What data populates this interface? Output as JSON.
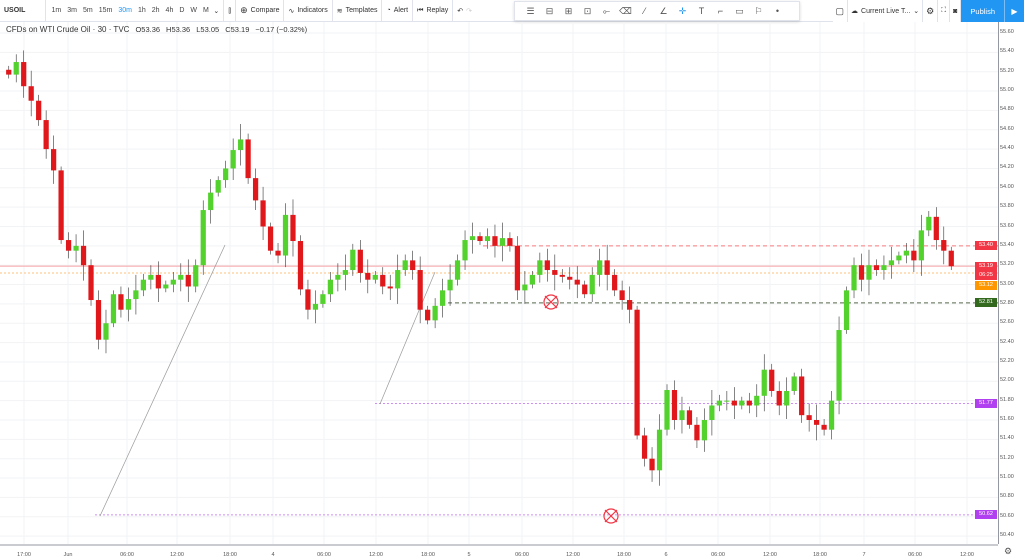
{
  "toolbar": {
    "symbol": "USOIL",
    "timeframes": [
      "1m",
      "3m",
      "5m",
      "15m",
      "30m",
      "1h",
      "2h",
      "4h",
      "D",
      "W",
      "M"
    ],
    "active_timeframe": "30m",
    "compare": "Compare",
    "indicators": "Indicators",
    "templates": "Templates",
    "alert": "Alert",
    "replay": "Replay",
    "layout": "Current Live T...",
    "publish": "Publish"
  },
  "legend": {
    "title": "CFDs on WTI Crude Oil · 30 · TVC",
    "open": "O53.36",
    "high": "H53.36",
    "low": "L53.05",
    "close": "C53.19",
    "change": "−0.17 (−0.32%)"
  },
  "price_axis": {
    "ticks": [
      "55.60",
      "55.40",
      "55.20",
      "55.00",
      "54.80",
      "54.60",
      "54.40",
      "54.20",
      "54.00",
      "53.80",
      "53.60",
      "53.40",
      "53.20",
      "53.00",
      "52.80",
      "52.60",
      "52.40",
      "52.20",
      "52.00",
      "51.80",
      "51.60",
      "51.40",
      "51.20",
      "51.00",
      "50.80",
      "50.60",
      "50.40"
    ],
    "tags": [
      {
        "text": "53.40",
        "price": 53.4,
        "color": "#f23645"
      },
      {
        "text": "53.19",
        "price": 53.19,
        "color": "#f23645"
      },
      {
        "text": "06:25",
        "price": 53.09,
        "color": "#f23645"
      },
      {
        "text": "53.12",
        "price": 52.99,
        "color": "#ff9800"
      },
      {
        "text": "52.81",
        "price": 52.81,
        "color": "#33691e"
      },
      {
        "text": "51.77",
        "price": 51.77,
        "color": "#b040f0"
      },
      {
        "text": "50.62",
        "price": 50.62,
        "color": "#b040f0"
      }
    ]
  },
  "time_axis": [
    "17:00",
    "Jun",
    "06:00",
    "12:00",
    "18:00",
    "4",
    "06:00",
    "12:00",
    "18:00",
    "5",
    "06:00",
    "12:00",
    "18:00",
    "6",
    "06:00",
    "12:00",
    "18:00",
    "7",
    "06:00",
    "12:00"
  ],
  "colors": {
    "up": "#53d22d",
    "down": "#e0181b"
  },
  "chart_data": {
    "type": "candlestick",
    "symbol": "USOIL",
    "interval": "30",
    "ylim": [
      50.4,
      55.7
    ],
    "closes": [
      55.17,
      55.3,
      55.05,
      54.9,
      54.7,
      54.4,
      54.18,
      53.46,
      53.35,
      53.4,
      53.2,
      52.84,
      52.43,
      52.6,
      52.9,
      52.74,
      52.85,
      52.94,
      53.05,
      53.1,
      52.96,
      53.0,
      53.05,
      53.1,
      52.98,
      53.2,
      53.77,
      53.95,
      54.08,
      54.2,
      54.39,
      54.5,
      54.1,
      53.87,
      53.6,
      53.35,
      53.3,
      53.72,
      53.45,
      52.95,
      52.74,
      52.8,
      52.9,
      53.05,
      53.1,
      53.15,
      53.36,
      53.12,
      53.05,
      53.1,
      52.98,
      52.96,
      53.15,
      53.25,
      53.15,
      52.74,
      52.63,
      52.78,
      52.94,
      53.05,
      53.25,
      53.46,
      53.5,
      53.45,
      53.5,
      53.4,
      53.48,
      53.4,
      52.94,
      53.0,
      53.1,
      53.25,
      53.15,
      53.1,
      53.08,
      53.05,
      53.0,
      52.9,
      53.1,
      53.25,
      53.1,
      52.94,
      52.84,
      52.74,
      51.44,
      51.2,
      51.08,
      51.5,
      51.91,
      51.6,
      51.7,
      51.55,
      51.39,
      51.6,
      51.75,
      51.8,
      51.8,
      51.75,
      51.8,
      51.75,
      51.85,
      52.12,
      51.9,
      51.75,
      51.9,
      52.05,
      51.65,
      51.6,
      51.55,
      51.5,
      51.8,
      52.53,
      52.94,
      53.2,
      53.05,
      53.2,
      53.15,
      53.2,
      53.25,
      53.3,
      53.35,
      53.25,
      53.56,
      53.7,
      53.46,
      53.35,
      53.19
    ],
    "hlines": [
      {
        "price": 53.4,
        "style": "dashed",
        "color": "#f77c80"
      },
      {
        "price": 53.19,
        "style": "solid",
        "color": "#f7a1a4"
      },
      {
        "price": 53.12,
        "style": "dotted",
        "color": "#ffc07a"
      },
      {
        "price": 52.81,
        "style": "dashed",
        "color": "#5b6b4e"
      },
      {
        "price": 51.77,
        "style": "dotted",
        "color": "#cf8cf5"
      },
      {
        "price": 50.62,
        "style": "dotted",
        "color": "#cf8cf5"
      }
    ]
  }
}
